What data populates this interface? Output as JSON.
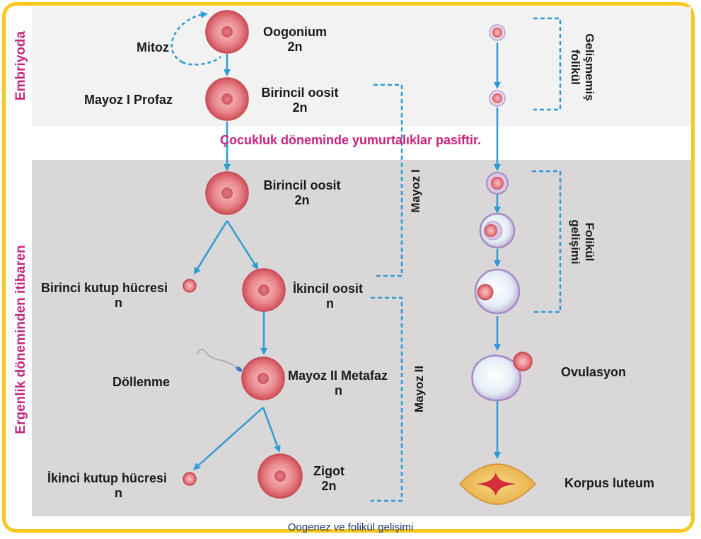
{
  "side_labels": {
    "embryo": "Embriyoda",
    "puberty": "Ergenlik döneminden itibaren"
  },
  "note": "Çocukluk döneminde yumurtalıklar pasiftir.",
  "caption": "Oogenez ve folikül gelişimi",
  "cells": {
    "oogonium": {
      "name": "Oogonium",
      "ploidy": "2n"
    },
    "primary_oocyte_1": {
      "name": "Birincil oosit",
      "ploidy": "2n"
    },
    "primary_oocyte_2": {
      "name": "Birincil oosit",
      "ploidy": "2n"
    },
    "secondary_oocyte": {
      "name": "İkincil oosit",
      "ploidy": "n"
    },
    "meiosis2_metaphase": {
      "name": "Mayoz II Metafaz",
      "ploidy": "n"
    },
    "zygote": {
      "name": "Zigot",
      "ploidy": "2n"
    },
    "first_polar_body": {
      "name": "Birinci kutup hücresi",
      "ploidy": "n"
    },
    "second_polar_body": {
      "name": "İkinci kutup hücresi",
      "ploidy": "n"
    }
  },
  "process_labels": {
    "mitosis": "Mitoz",
    "prophase": "Mayoz I Profaz",
    "fertilization": "Döllenme"
  },
  "brackets": {
    "meiosis1": "Mayoz I",
    "meiosis2": "Mayoz II"
  },
  "follicle": {
    "undeveloped": "Gelişmemiş folikül",
    "undeveloped_line1": "Gelişmemiş",
    "undeveloped_line2": "folikül",
    "development_line1": "Folikül",
    "development_line2": "gelişimi",
    "ovulation": "Ovulasyon",
    "corpus_luteum": "Korpus luteum"
  },
  "colors": {
    "arrow": "#2f9bd6",
    "accent": "#c8237e",
    "border": "#f8c81c",
    "cell": "#e0666c",
    "bracket": "#2f9bd6"
  }
}
